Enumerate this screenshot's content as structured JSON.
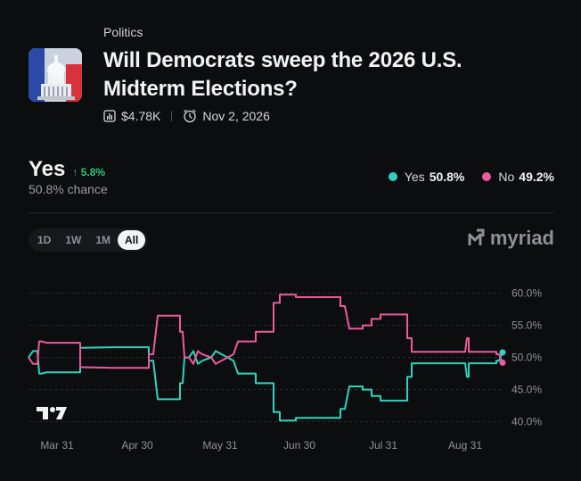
{
  "market": {
    "category": "Politics",
    "title": "Will Democrats sweep the 2026 U.S. Midterm Elections?",
    "volume": "$4.78K",
    "end_date": "Nov 2, 2026",
    "thumbnail_icon": "capitol-building-icon"
  },
  "outcome": {
    "name": "Yes",
    "change": "↑ 5.8%",
    "chance": "50.8% chance"
  },
  "legend": [
    {
      "label": "Yes",
      "value": "50.8%",
      "color": "#2ed3c0"
    },
    {
      "label": "No",
      "value": "49.2%",
      "color": "#ee5a9c"
    }
  ],
  "ranges": [
    "1D",
    "1W",
    "1M",
    "All"
  ],
  "active_range": "All",
  "brand": "myriad",
  "chart_data": {
    "type": "line",
    "x_ticks": [
      "Mar 31",
      "Apr 30",
      "May 31",
      "Jun 30",
      "Jul 31",
      "Aug 31"
    ],
    "y_ticks": [
      "60.0%",
      "55.0%",
      "50.0%",
      "45.0%",
      "40.0%"
    ],
    "ylim": [
      38.7,
      61.2
    ],
    "x_range": [
      0,
      532
    ],
    "step": true,
    "grid": "dashed-horizontal",
    "series": [
      {
        "name": "Yes",
        "color": "#2ed3c0",
        "points": [
          [
            0,
            50
          ],
          [
            5,
            51
          ],
          [
            10,
            51
          ],
          [
            12,
            47.5
          ],
          [
            15,
            47.5
          ],
          [
            20,
            47.7
          ],
          [
            50,
            47.7
          ],
          [
            58,
            47.7
          ],
          [
            58,
            51.5
          ],
          [
            95,
            51.6
          ],
          [
            135,
            51.6
          ],
          [
            135,
            49.5
          ],
          [
            140,
            49.5
          ],
          [
            145,
            43.5
          ],
          [
            170,
            43.5
          ],
          [
            170,
            46
          ],
          [
            173,
            46
          ],
          [
            175,
            50
          ],
          [
            180,
            50
          ],
          [
            185,
            51
          ],
          [
            190,
            49
          ],
          [
            195,
            49.5
          ],
          [
            205,
            50
          ],
          [
            210,
            51
          ],
          [
            230,
            49.5
          ],
          [
            235,
            47.5
          ],
          [
            255,
            47.5
          ],
          [
            255,
            46
          ],
          [
            275,
            46
          ],
          [
            275,
            41.5
          ],
          [
            282,
            41.5
          ],
          [
            282,
            40.2
          ],
          [
            300,
            40.2
          ],
          [
            300,
            40.6
          ],
          [
            350,
            40.6
          ],
          [
            350,
            42
          ],
          [
            355,
            42
          ],
          [
            360,
            45.5
          ],
          [
            375,
            45.5
          ],
          [
            375,
            45
          ],
          [
            385,
            45
          ],
          [
            385,
            44
          ],
          [
            395,
            44
          ],
          [
            395,
            43.3
          ],
          [
            425,
            43.3
          ],
          [
            425,
            47
          ],
          [
            430,
            47
          ],
          [
            430,
            49.1
          ],
          [
            490,
            49.1
          ],
          [
            492,
            47
          ],
          [
            494,
            47
          ],
          [
            494,
            49.1
          ],
          [
            525,
            49.1
          ],
          [
            525,
            49.5
          ],
          [
            528,
            49.5
          ],
          [
            532,
            50.8
          ]
        ]
      },
      {
        "name": "No",
        "color": "#ee5a9c",
        "points": [
          [
            0,
            50
          ],
          [
            5,
            49
          ],
          [
            10,
            49
          ],
          [
            12,
            52.5
          ],
          [
            15,
            52.5
          ],
          [
            20,
            52.3
          ],
          [
            50,
            52.3
          ],
          [
            58,
            52.3
          ],
          [
            58,
            48.5
          ],
          [
            95,
            48.4
          ],
          [
            135,
            48.4
          ],
          [
            135,
            50.5
          ],
          [
            140,
            50.5
          ],
          [
            145,
            56.5
          ],
          [
            170,
            56.5
          ],
          [
            170,
            54
          ],
          [
            173,
            54
          ],
          [
            175,
            50
          ],
          [
            180,
            50
          ],
          [
            185,
            49
          ],
          [
            190,
            51
          ],
          [
            195,
            50.5
          ],
          [
            205,
            50
          ],
          [
            210,
            49
          ],
          [
            230,
            50.5
          ],
          [
            235,
            52.5
          ],
          [
            255,
            52.5
          ],
          [
            255,
            54
          ],
          [
            275,
            54
          ],
          [
            275,
            58.5
          ],
          [
            282,
            58.5
          ],
          [
            282,
            59.8
          ],
          [
            300,
            59.8
          ],
          [
            300,
            59.4
          ],
          [
            350,
            59.4
          ],
          [
            350,
            58
          ],
          [
            355,
            58
          ],
          [
            360,
            54.5
          ],
          [
            375,
            54.5
          ],
          [
            375,
            55
          ],
          [
            385,
            55
          ],
          [
            385,
            56
          ],
          [
            395,
            56
          ],
          [
            395,
            56.7
          ],
          [
            425,
            56.7
          ],
          [
            425,
            53
          ],
          [
            430,
            53
          ],
          [
            430,
            50.9
          ],
          [
            490,
            50.9
          ],
          [
            492,
            53
          ],
          [
            494,
            53
          ],
          [
            494,
            50.9
          ],
          [
            525,
            50.9
          ],
          [
            525,
            50.5
          ],
          [
            528,
            50.5
          ],
          [
            532,
            49.2
          ]
        ]
      }
    ]
  }
}
